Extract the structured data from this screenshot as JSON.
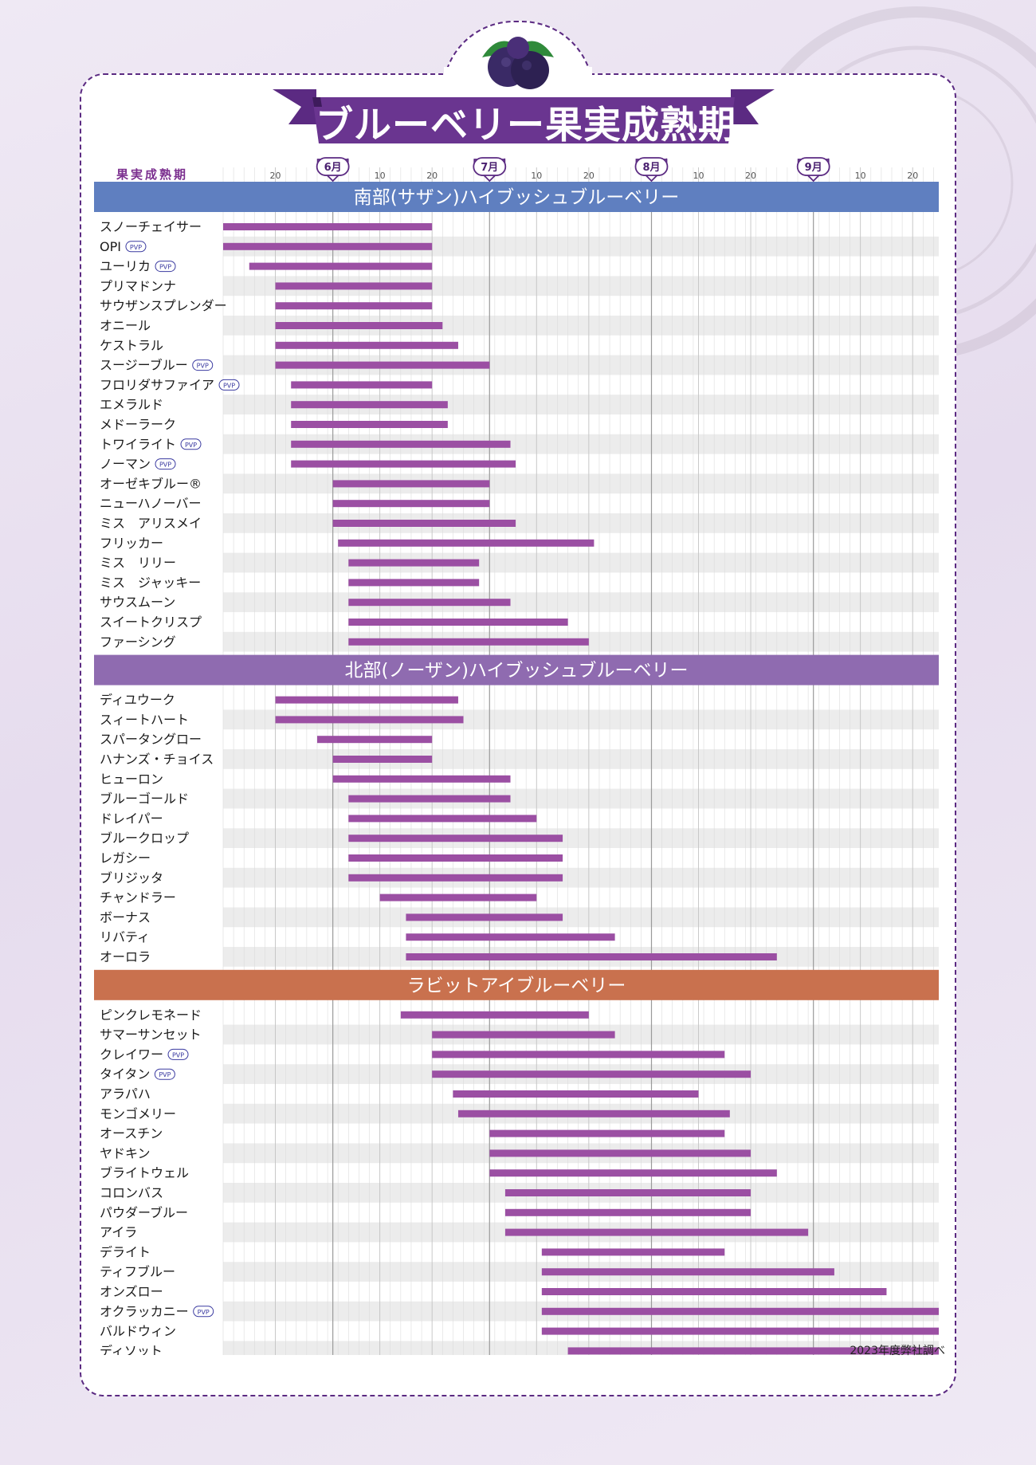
{
  "title": "ブルーベリー果実成熟期",
  "header_label": "果実成熟期",
  "source_note": "2023年度弊社調べ",
  "pvp_label": "PVP",
  "chart_data": {
    "type": "gantt",
    "x_unit": "day of season (1 = June 1)",
    "months": [
      {
        "label": "6月",
        "start": 1
      },
      {
        "label": "7月",
        "start": 31
      },
      {
        "label": "8月",
        "start": 62
      },
      {
        "label": "9月",
        "start": 93
      }
    ],
    "xlim": [
      -20,
      117
    ],
    "x_tick_labels": [
      {
        "label": "20",
        "x": -10
      },
      {
        "label": "10",
        "x": 10
      },
      {
        "label": "20",
        "x": 20
      },
      {
        "label": "10",
        "x": 40
      },
      {
        "label": "20",
        "x": 50
      },
      {
        "label": "10",
        "x": 71
      },
      {
        "label": "20",
        "x": 81
      },
      {
        "label": "10",
        "x": 102
      },
      {
        "label": "20",
        "x": 112
      }
    ],
    "groups": [
      {
        "name": "南部(サザン)ハイブッシュブルーベリー",
        "color": "#5f7fc0",
        "varieties": [
          {
            "name": "スノーチェイサー",
            "start": -20,
            "end": 20,
            "pvp": false
          },
          {
            "name": "OPI",
            "start": -20,
            "end": 20,
            "pvp": true
          },
          {
            "name": "ユーリカ",
            "start": -15,
            "end": 20,
            "pvp": true
          },
          {
            "name": "プリマドンナ",
            "start": -10,
            "end": 20,
            "pvp": false
          },
          {
            "name": "サウザンスプレンダー",
            "start": -10,
            "end": 20,
            "pvp": false
          },
          {
            "name": "オニール",
            "start": -10,
            "end": 22,
            "pvp": false
          },
          {
            "name": "ケストラル",
            "start": -10,
            "end": 25,
            "pvp": false
          },
          {
            "name": "スージーブルー",
            "start": -10,
            "end": 31,
            "pvp": true
          },
          {
            "name": "フロリダサファイア",
            "start": -7,
            "end": 20,
            "pvp": true
          },
          {
            "name": "エメラルド",
            "start": -7,
            "end": 23,
            "pvp": false
          },
          {
            "name": "メドーラーク",
            "start": -7,
            "end": 23,
            "pvp": false
          },
          {
            "name": "トワイライト",
            "start": -7,
            "end": 35,
            "pvp": true
          },
          {
            "name": "ノーマン",
            "start": -7,
            "end": 36,
            "pvp": true
          },
          {
            "name": "オーゼキブルー®",
            "start": 1,
            "end": 31,
            "pvp": false
          },
          {
            "name": "ニューハノーバー",
            "start": 1,
            "end": 31,
            "pvp": false
          },
          {
            "name": "ミス　アリスメイ",
            "start": 1,
            "end": 36,
            "pvp": false
          },
          {
            "name": "フリッカー",
            "start": 2,
            "end": 51,
            "pvp": false
          },
          {
            "name": "ミス　リリー",
            "start": 4,
            "end": 29,
            "pvp": false
          },
          {
            "name": "ミス　ジャッキー",
            "start": 4,
            "end": 29,
            "pvp": false
          },
          {
            "name": "サウスムーン",
            "start": 4,
            "end": 35,
            "pvp": false
          },
          {
            "name": "スイートクリスプ",
            "start": 4,
            "end": 46,
            "pvp": false
          },
          {
            "name": "ファーシング",
            "start": 4,
            "end": 50,
            "pvp": false
          }
        ]
      },
      {
        "name": "北部(ノーザン)ハイブッシュブルーベリー",
        "color": "#8f6bb0",
        "varieties": [
          {
            "name": "ディユウーク",
            "start": -10,
            "end": 25,
            "pvp": false
          },
          {
            "name": "スィートハート",
            "start": -10,
            "end": 26,
            "pvp": false
          },
          {
            "name": "スパータングロー",
            "start": -2,
            "end": 20,
            "pvp": false
          },
          {
            "name": "ハナンズ・チョイス",
            "start": 1,
            "end": 20,
            "pvp": false
          },
          {
            "name": "ヒューロン",
            "start": 1,
            "end": 35,
            "pvp": false
          },
          {
            "name": "ブルーゴールド",
            "start": 4,
            "end": 35,
            "pvp": false
          },
          {
            "name": "ドレイパー",
            "start": 4,
            "end": 40,
            "pvp": false
          },
          {
            "name": "ブルークロップ",
            "start": 4,
            "end": 45,
            "pvp": false
          },
          {
            "name": "レガシー",
            "start": 4,
            "end": 45,
            "pvp": false
          },
          {
            "name": "ブリジッタ",
            "start": 4,
            "end": 45,
            "pvp": false
          },
          {
            "name": "チャンドラー",
            "start": 10,
            "end": 40,
            "pvp": false
          },
          {
            "name": "ボーナス",
            "start": 15,
            "end": 45,
            "pvp": false
          },
          {
            "name": "リバティ",
            "start": 15,
            "end": 55,
            "pvp": false
          },
          {
            "name": "オーロラ",
            "start": 15,
            "end": 86,
            "pvp": false
          }
        ]
      },
      {
        "name": "ラビットアイブルーベリー",
        "color": "#c9714e",
        "varieties": [
          {
            "name": "ピンクレモネード",
            "start": 14,
            "end": 50,
            "pvp": false
          },
          {
            "name": "サマーサンセット",
            "start": 20,
            "end": 55,
            "pvp": false
          },
          {
            "name": "クレイワー",
            "start": 20,
            "end": 76,
            "pvp": true
          },
          {
            "name": "タイタン",
            "start": 20,
            "end": 81,
            "pvp": true
          },
          {
            "name": "アラパハ",
            "start": 24,
            "end": 71,
            "pvp": false
          },
          {
            "name": "モンゴメリー",
            "start": 25,
            "end": 77,
            "pvp": false
          },
          {
            "name": "オースチン",
            "start": 31,
            "end": 76,
            "pvp": false
          },
          {
            "name": "ヤドキン",
            "start": 31,
            "end": 81,
            "pvp": false
          },
          {
            "name": "ブライトウェル",
            "start": 31,
            "end": 86,
            "pvp": false
          },
          {
            "name": "コロンバス",
            "start": 34,
            "end": 81,
            "pvp": false
          },
          {
            "name": "パウダーブルー",
            "start": 34,
            "end": 81,
            "pvp": false
          },
          {
            "name": "アイラ",
            "start": 34,
            "end": 92,
            "pvp": false
          },
          {
            "name": "デライト",
            "start": 41,
            "end": 76,
            "pvp": false
          },
          {
            "name": "ティフブルー",
            "start": 41,
            "end": 97,
            "pvp": false
          },
          {
            "name": "オンズロー",
            "start": 41,
            "end": 107,
            "pvp": false
          },
          {
            "name": "オクラッカニー",
            "start": 41,
            "end": 117,
            "pvp": true
          },
          {
            "name": "バルドウィン",
            "start": 41,
            "end": 117,
            "pvp": false
          },
          {
            "name": "ディソット",
            "start": 46,
            "end": 117,
            "pvp": false
          }
        ]
      }
    ]
  },
  "colors": {
    "bar": "#9b4fa3",
    "accent": "#5b2a82",
    "row_stripe": "#ececec"
  }
}
